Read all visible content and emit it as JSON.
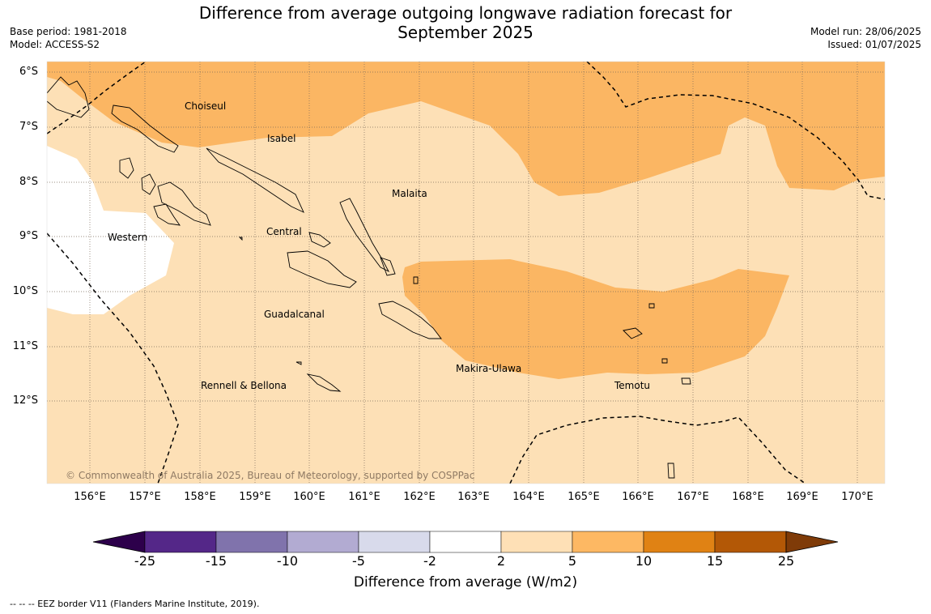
{
  "header": {
    "title_line1": "Difference from average outgoing longwave radiation forecast for",
    "title_line2": "September 2025",
    "base_period": "Base period: 1981-2018",
    "model": "Model: ACCESS-S2",
    "model_run": "Model run: 28/06/2025",
    "issued": "Issued: 01/07/2025"
  },
  "map": {
    "lat_labels": [
      "6°S",
      "7°S",
      "8°S",
      "9°S",
      "10°S",
      "11°S",
      "12°S"
    ],
    "lon_labels": [
      "156°E",
      "157°E",
      "158°E",
      "159°E",
      "160°E",
      "161°E",
      "162°E",
      "163°E",
      "164°E",
      "165°E",
      "166°E",
      "167°E",
      "168°E",
      "169°E",
      "170°E"
    ],
    "regions": [
      "Choiseul",
      "Isabel",
      "Malaita",
      "Western",
      "Central",
      "Guadalcanal",
      "Makira-Ulawa",
      "Rennell & Bellona",
      "Temotu"
    ],
    "copyright": "© Commonwealth of Australia 2025, Bureau of Meteorology, supported by COSPPac",
    "fill_colors": {
      "below_neg2": "#ffffff",
      "range_2_5": "#fde0b6",
      "range_5_10": "#fbb663"
    }
  },
  "colorbar": {
    "title": "Difference from average (W/m2)",
    "tick_labels": [
      "-25",
      "-15",
      "-10",
      "-5",
      "-2",
      "2",
      "5",
      "10",
      "15",
      "25"
    ],
    "colors": [
      "#2d004b",
      "#542788",
      "#8073ac",
      "#b2abd2",
      "#d8daeb",
      "#ffffff",
      "#fee0b6",
      "#fdb863",
      "#e08214",
      "#b35806",
      "#7f3b08"
    ]
  },
  "footer": {
    "eez_note": "--  --  -- EEZ border V11 (Flanders Marine Institute, 2019)."
  }
}
